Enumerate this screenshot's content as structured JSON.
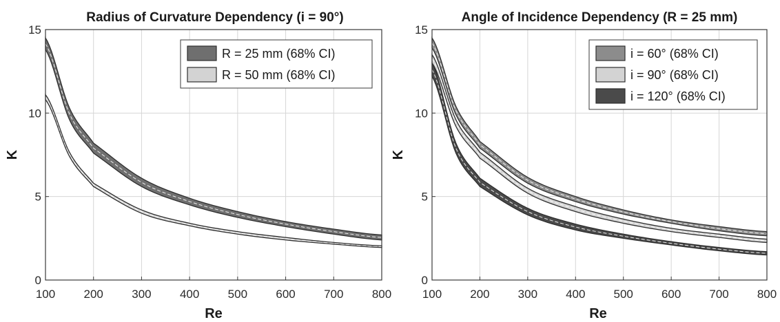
{
  "chart_data": [
    {
      "type": "area",
      "title": "Radius of Curvature Dependency (i = 90°)",
      "xlabel": "Re",
      "ylabel": "K",
      "xlim": [
        100,
        800
      ],
      "ylim": [
        0,
        15
      ],
      "x_ticks": [
        100,
        200,
        300,
        400,
        500,
        600,
        700,
        800
      ],
      "y_ticks": [
        0,
        5,
        10,
        15
      ],
      "grid": true,
      "legend_position": "top-right",
      "x": [
        100,
        150,
        200,
        300,
        400,
        500,
        600,
        700,
        800
      ],
      "series": [
        {
          "name": "R = 25 mm (68% CI)",
          "color": "#6f6f6f",
          "lower": [
            13.8,
            9.6,
            7.6,
            5.6,
            4.5,
            3.75,
            3.2,
            2.75,
            2.4
          ],
          "upper": [
            14.5,
            10.3,
            8.2,
            6.1,
            4.9,
            4.1,
            3.5,
            3.05,
            2.7
          ]
        },
        {
          "name": "R = 50 mm (68% CI)",
          "color": "#d3d3d3",
          "lower": [
            10.8,
            7.4,
            5.6,
            4.0,
            3.25,
            2.75,
            2.4,
            2.15,
            1.95
          ],
          "upper": [
            11.1,
            7.65,
            5.8,
            4.2,
            3.4,
            2.9,
            2.55,
            2.25,
            2.05
          ]
        }
      ]
    },
    {
      "type": "area",
      "title": "Angle of Incidence Dependency (R = 25 mm)",
      "xlabel": "Re",
      "ylabel": "K",
      "xlim": [
        100,
        800
      ],
      "ylim": [
        0,
        15
      ],
      "x_ticks": [
        100,
        200,
        300,
        400,
        500,
        600,
        700,
        800
      ],
      "y_ticks": [
        0,
        5,
        10,
        15
      ],
      "grid": true,
      "legend_position": "top-right",
      "x": [
        100,
        150,
        200,
        300,
        400,
        500,
        600,
        700,
        800
      ],
      "series": [
        {
          "name": "i = 60° (68% CI)",
          "color": "#8c8c8c",
          "lower": [
            13.9,
            9.9,
            7.9,
            5.8,
            4.7,
            3.95,
            3.4,
            2.95,
            2.65
          ],
          "upper": [
            14.5,
            10.4,
            8.3,
            6.15,
            5.0,
            4.2,
            3.6,
            3.2,
            2.9
          ]
        },
        {
          "name": "i = 90° (68% CI)",
          "color": "#d3d3d3",
          "lower": [
            13.0,
            9.2,
            7.3,
            5.2,
            4.1,
            3.4,
            2.9,
            2.55,
            2.25
          ],
          "upper": [
            13.5,
            9.6,
            7.65,
            5.5,
            4.4,
            3.65,
            3.1,
            2.75,
            2.45
          ]
        },
        {
          "name": "i = 120° (68% CI)",
          "color": "#4a4a4a",
          "lower": [
            12.2,
            7.6,
            5.6,
            3.9,
            3.0,
            2.5,
            2.1,
            1.75,
            1.5
          ],
          "upper": [
            13.0,
            8.2,
            6.1,
            4.3,
            3.35,
            2.75,
            2.3,
            1.95,
            1.7
          ]
        }
      ]
    }
  ]
}
